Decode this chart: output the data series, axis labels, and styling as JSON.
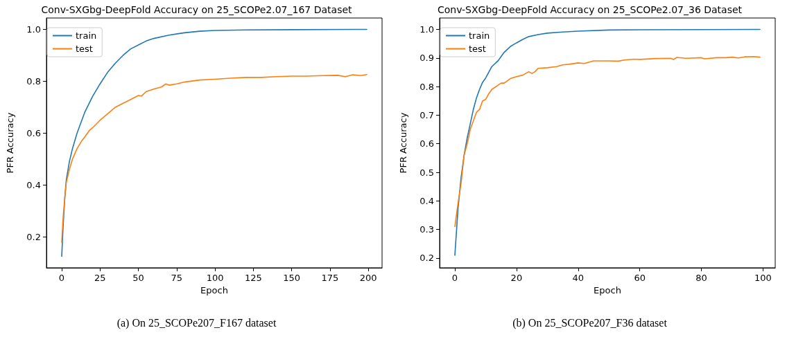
{
  "chart_data": [
    {
      "type": "line",
      "title": "Conv-SXGbg-DeepFold Accuracy on 25_SCOPe2.07_167 Dataset",
      "xlabel": "Epoch",
      "ylabel": "PFR Accuracy",
      "annotations": [
        "(a) On 25_SCOPe207_F167 dataset"
      ],
      "xlim": [
        -9.95,
        208.95
      ],
      "xticks": [
        0,
        25,
        50,
        75,
        100,
        125,
        150,
        175,
        200
      ],
      "ylim": [
        0.081,
        1.044
      ],
      "yticks": [
        0.2,
        0.4,
        0.6,
        0.8,
        {
          "value": 1,
          "label": "1.0"
        }
      ],
      "grid": false,
      "legend": "top left",
      "marker": "none",
      "line_style": "solid",
      "series": [
        {
          "name": "train",
          "color": "#1f77b4",
          "x": [
            0,
            1,
            2,
            3,
            5,
            7,
            10,
            15,
            20,
            25,
            30,
            35,
            40,
            45,
            50,
            55,
            60,
            70,
            80,
            90,
            100,
            120,
            150,
            199
          ],
          "values": [
            0.125,
            0.25,
            0.35,
            0.42,
            0.49,
            0.54,
            0.6,
            0.68,
            0.74,
            0.79,
            0.835,
            0.87,
            0.9,
            0.925,
            0.94,
            0.955,
            0.965,
            0.978,
            0.987,
            0.993,
            0.996,
            0.998,
            0.999,
            1.0
          ]
        },
        {
          "name": "test",
          "color": "#ff7f0e",
          "x": [
            0,
            1,
            2,
            3,
            5,
            7,
            10,
            13,
            15,
            18,
            20,
            25,
            30,
            35,
            40,
            45,
            50,
            52,
            55,
            60,
            65,
            68,
            70,
            75,
            80,
            90,
            100,
            110,
            120,
            130,
            140,
            150,
            160,
            170,
            180,
            185,
            190,
            195,
            199
          ],
          "values": [
            0.18,
            0.28,
            0.35,
            0.41,
            0.46,
            0.5,
            0.54,
            0.57,
            0.585,
            0.61,
            0.62,
            0.65,
            0.675,
            0.7,
            0.715,
            0.73,
            0.745,
            0.743,
            0.76,
            0.77,
            0.778,
            0.79,
            0.785,
            0.79,
            0.797,
            0.805,
            0.808,
            0.812,
            0.815,
            0.815,
            0.818,
            0.82,
            0.82,
            0.822,
            0.823,
            0.818,
            0.825,
            0.822,
            0.826
          ]
        }
      ]
    },
    {
      "type": "line",
      "title": "Conv-SXGbg-DeepFold Accuracy on 25_SCOPe2.07_36 Dataset",
      "xlabel": "Epoch",
      "ylabel": "PFR Accuracy",
      "annotations": [
        "(b) On 25_SCOPe207_F36 dataset"
      ],
      "xlim": [
        -4.95,
        103.95
      ],
      "xticks": [
        0,
        20,
        40,
        60,
        80,
        100
      ],
      "ylim": [
        0.166,
        1.04
      ],
      "yticks": [
        0.2,
        0.3,
        0.4,
        0.5,
        0.6,
        0.7,
        0.8,
        0.9,
        {
          "value": 1,
          "label": "1.0"
        }
      ],
      "grid": false,
      "legend": "top left",
      "marker": "none",
      "line_style": "solid",
      "series": [
        {
          "name": "train",
          "color": "#1f77b4",
          "x": [
            0,
            1,
            2,
            3,
            4,
            5,
            6,
            7,
            8,
            9,
            10,
            12,
            14,
            16,
            18,
            20,
            22,
            24,
            27,
            30,
            35,
            40,
            50,
            60,
            99
          ],
          "values": [
            0.21,
            0.37,
            0.48,
            0.56,
            0.62,
            0.67,
            0.72,
            0.76,
            0.79,
            0.815,
            0.83,
            0.87,
            0.89,
            0.92,
            0.94,
            0.953,
            0.965,
            0.975,
            0.982,
            0.987,
            0.991,
            0.994,
            0.998,
            0.999,
            1.0
          ]
        },
        {
          "name": "test",
          "color": "#ff7f0e",
          "x": [
            0,
            1,
            2,
            3,
            4,
            5,
            6,
            7,
            8,
            9,
            10,
            11,
            12,
            14,
            15,
            16,
            18,
            20,
            22,
            24,
            25,
            26,
            27,
            30,
            33,
            35,
            37,
            40,
            42,
            45,
            50,
            53,
            55,
            58,
            60,
            65,
            70,
            71,
            72,
            75,
            80,
            81,
            85,
            88,
            90,
            92,
            94,
            97,
            99
          ],
          "values": [
            0.31,
            0.39,
            0.46,
            0.56,
            0.6,
            0.65,
            0.68,
            0.71,
            0.72,
            0.75,
            0.755,
            0.775,
            0.79,
            0.805,
            0.812,
            0.812,
            0.828,
            0.835,
            0.84,
            0.852,
            0.846,
            0.852,
            0.864,
            0.866,
            0.87,
            0.876,
            0.878,
            0.883,
            0.881,
            0.89,
            0.89,
            0.889,
            0.893,
            0.896,
            0.895,
            0.898,
            0.899,
            0.895,
            0.902,
            0.899,
            0.901,
            0.897,
            0.901,
            0.901,
            0.903,
            0.9,
            0.904,
            0.905,
            0.903
          ]
        }
      ]
    }
  ]
}
